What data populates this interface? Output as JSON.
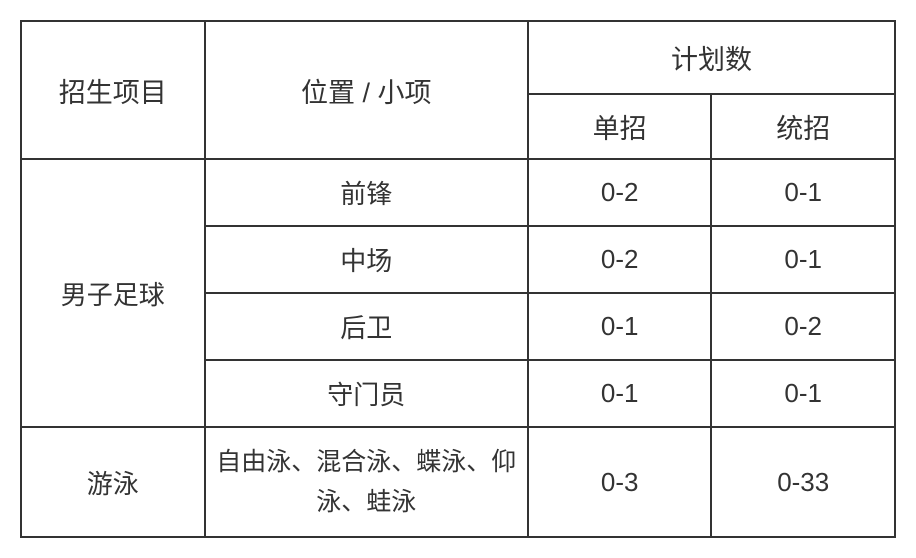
{
  "table": {
    "type": "table",
    "border_color": "#333333",
    "text_color": "#333333",
    "background_color": "#ffffff",
    "font_size_header": 27,
    "font_size_data": 26,
    "headers": {
      "project": "招生项目",
      "position": "位置 / 小项",
      "plan": "计划数",
      "individual": "单招",
      "unified": "统招"
    },
    "sections": [
      {
        "project": "男子足球",
        "rows": [
          {
            "position": "前锋",
            "individual": "0-2",
            "unified": "0-1"
          },
          {
            "position": "中场",
            "individual": "0-2",
            "unified": "0-1"
          },
          {
            "position": "后卫",
            "individual": "0-1",
            "unified": "0-2"
          },
          {
            "position": "守门员",
            "individual": "0-1",
            "unified": "0-1"
          }
        ]
      },
      {
        "project": "游泳",
        "rows": [
          {
            "position": "自由泳、混合泳、蝶泳、仰泳、蛙泳",
            "individual": "0-3",
            "unified": "0-33"
          }
        ]
      }
    ]
  }
}
